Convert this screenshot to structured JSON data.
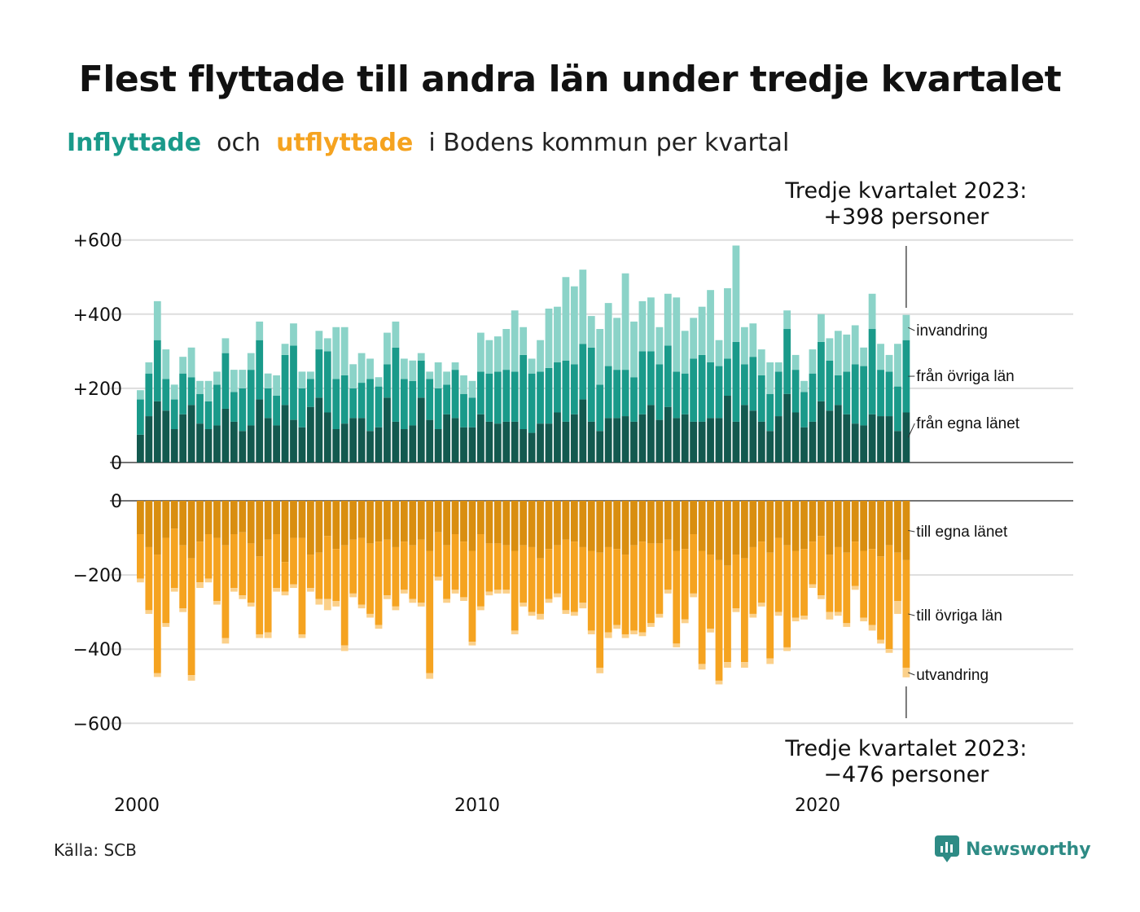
{
  "title": "Flest flyttade till andra län under tredje kvartalet",
  "subtitle": {
    "inflyttade": "Inflyttade",
    "och": "och",
    "utflyttade": "utflyttade",
    "rest": "i Bodens kommun per kvartal"
  },
  "annotations": {
    "top": [
      "Tredje kvartalet 2023:",
      "+398 personer"
    ],
    "bottom": [
      "Tredje kvartalet 2023:",
      "−476 personer"
    ]
  },
  "source": "Källa: SCB",
  "brand": "Newsworthy",
  "colors": {
    "in_egna": "#13594f",
    "in_ovriga": "#1a9a8a",
    "in_invandring": "#8bd3c8",
    "out_egna": "#d98e10",
    "out_ovriga": "#f5a320",
    "out_utvandring": "#fbd08a",
    "title_in": "#1a9a8a",
    "title_out": "#f5a320"
  },
  "chart_data": {
    "type": "bar",
    "stacked": true,
    "x_start": "2000 Q1",
    "x_ticks": [
      "2000",
      "2010",
      "2020"
    ],
    "y_ticks_top": [
      "0",
      "+200",
      "+400",
      "+600"
    ],
    "y_ticks_bottom": [
      "0",
      "−200",
      "−400",
      "−600"
    ],
    "ylim_top": [
      0,
      600
    ],
    "ylim_bottom": [
      -600,
      0
    ],
    "series_labels_in": [
      "invandring",
      "från övriga län",
      "från egna länet"
    ],
    "series_labels_out": [
      "till egna länet",
      "till övriga län",
      "utvandring"
    ],
    "inflyttade": {
      "fran_egna_lanet": [
        75,
        125,
        165,
        140,
        90,
        130,
        155,
        105,
        90,
        100,
        145,
        110,
        85,
        100,
        170,
        120,
        100,
        155,
        115,
        95,
        150,
        175,
        135,
        90,
        105,
        120,
        120,
        85,
        95,
        175,
        110,
        90,
        100,
        175,
        115,
        90,
        130,
        120,
        95,
        95,
        130,
        110,
        105,
        110,
        110,
        90,
        80,
        105,
        105,
        135,
        110,
        130,
        170,
        110,
        85,
        120,
        120,
        125,
        110,
        130,
        155,
        115,
        150,
        120,
        130,
        110,
        110,
        120,
        120,
        180,
        110,
        155,
        140,
        110,
        85,
        125,
        185,
        135,
        95,
        110,
        165,
        140,
        155,
        130,
        105,
        100,
        130,
        125,
        125,
        85,
        135
      ],
      "fran_ovriga_lan": [
        95,
        115,
        165,
        85,
        80,
        110,
        75,
        80,
        75,
        110,
        150,
        80,
        115,
        150,
        160,
        80,
        80,
        135,
        200,
        105,
        75,
        130,
        165,
        135,
        130,
        80,
        95,
        140,
        110,
        90,
        200,
        135,
        120,
        100,
        110,
        110,
        80,
        130,
        90,
        80,
        115,
        130,
        140,
        140,
        135,
        200,
        160,
        140,
        150,
        135,
        165,
        135,
        150,
        200,
        125,
        140,
        130,
        125,
        120,
        170,
        145,
        150,
        165,
        125,
        110,
        170,
        180,
        150,
        140,
        100,
        215,
        110,
        145,
        125,
        100,
        120,
        175,
        115,
        95,
        130,
        160,
        135,
        80,
        115,
        160,
        160,
        230,
        125,
        120,
        120,
        195
      ],
      "invandring": [
        25,
        30,
        105,
        80,
        40,
        45,
        80,
        35,
        55,
        35,
        40,
        60,
        50,
        45,
        50,
        40,
        55,
        30,
        60,
        45,
        20,
        50,
        35,
        140,
        130,
        65,
        80,
        55,
        25,
        85,
        70,
        55,
        55,
        20,
        20,
        70,
        35,
        20,
        50,
        45,
        105,
        90,
        95,
        110,
        165,
        75,
        40,
        85,
        160,
        150,
        225,
        210,
        200,
        85,
        150,
        170,
        140,
        260,
        150,
        135,
        145,
        100,
        140,
        200,
        115,
        110,
        130,
        195,
        70,
        190,
        260,
        100,
        90,
        70,
        85,
        25,
        50,
        40,
        30,
        65,
        75,
        60,
        120,
        100,
        105,
        50,
        95,
        70,
        45,
        115,
        68
      ]
    },
    "utflyttade": {
      "till_egna_lanet": [
        -90,
        -125,
        -145,
        -100,
        -75,
        -120,
        -155,
        -110,
        -90,
        -100,
        -120,
        -90,
        -85,
        -115,
        -150,
        -105,
        -90,
        -165,
        -100,
        -100,
        -145,
        -140,
        -95,
        -130,
        -120,
        -105,
        -100,
        -115,
        -110,
        -105,
        -125,
        -110,
        -120,
        -105,
        -135,
        -85,
        -120,
        -90,
        -110,
        -135,
        -90,
        -115,
        -115,
        -120,
        -135,
        -120,
        -125,
        -155,
        -130,
        -120,
        -105,
        -110,
        -125,
        -135,
        -140,
        -125,
        -130,
        -145,
        -120,
        -110,
        -115,
        -115,
        -105,
        -135,
        -130,
        -90,
        -135,
        -145,
        -160,
        -175,
        -145,
        -155,
        -125,
        -110,
        -140,
        -100,
        -120,
        -135,
        -130,
        -110,
        -95,
        -145,
        -125,
        -140,
        -110,
        -135,
        -130,
        -150,
        -120,
        -140,
        -160
      ],
      "till_ovriga_lan": [
        -120,
        -170,
        -320,
        -230,
        -160,
        -170,
        -315,
        -110,
        -120,
        -170,
        -250,
        -145,
        -170,
        -160,
        -210,
        -250,
        -145,
        -80,
        -125,
        -260,
        -90,
        -125,
        -170,
        -140,
        -270,
        -145,
        -180,
        -190,
        -225,
        -150,
        -160,
        -130,
        -145,
        -170,
        -330,
        -120,
        -145,
        -150,
        -150,
        -245,
        -195,
        -130,
        -125,
        -120,
        -215,
        -155,
        -175,
        -150,
        -135,
        -130,
        -190,
        -190,
        -150,
        -215,
        -310,
        -230,
        -205,
        -215,
        -230,
        -245,
        -215,
        -190,
        -135,
        -250,
        -190,
        -160,
        -305,
        -200,
        -325,
        -260,
        -145,
        -280,
        -180,
        -165,
        -285,
        -200,
        -275,
        -180,
        -180,
        -115,
        -160,
        -155,
        -175,
        -190,
        -120,
        -180,
        -205,
        -225,
        -280,
        -130,
        -290
      ],
      "utvandring": [
        -10,
        -10,
        -10,
        -10,
        -10,
        -10,
        -15,
        -15,
        -10,
        -10,
        -15,
        -10,
        -10,
        -10,
        -10,
        -15,
        -10,
        -10,
        -10,
        -10,
        -10,
        -15,
        -30,
        -15,
        -15,
        -10,
        -10,
        -10,
        -10,
        -10,
        -10,
        -10,
        -10,
        -10,
        -15,
        -10,
        -10,
        -10,
        -10,
        -10,
        -10,
        -10,
        -10,
        -10,
        -10,
        -10,
        -10,
        -15,
        -10,
        -10,
        -10,
        -10,
        -15,
        -10,
        -15,
        -15,
        -10,
        -10,
        -10,
        -10,
        -10,
        -10,
        -10,
        -10,
        -10,
        -10,
        -15,
        -10,
        -10,
        -15,
        -10,
        -15,
        -10,
        -10,
        -15,
        -10,
        -10,
        -10,
        -10,
        -10,
        -10,
        -20,
        -10,
        -10,
        -10,
        -10,
        -15,
        -10,
        -10,
        -35,
        -26
      ]
    }
  }
}
